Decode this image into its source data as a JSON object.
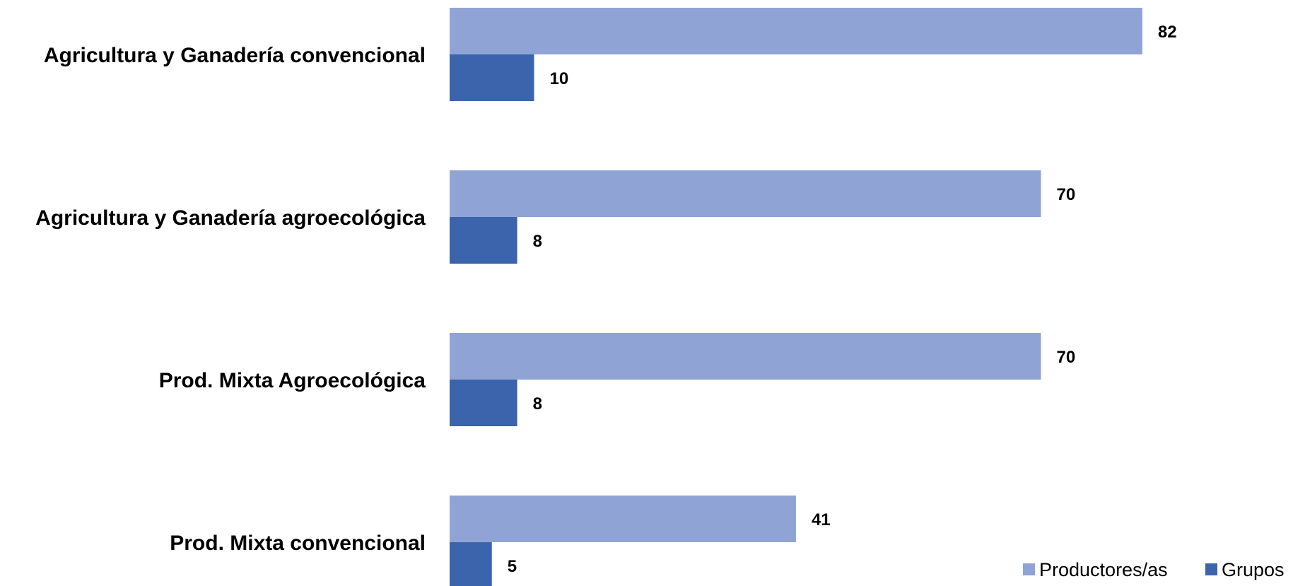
{
  "chart_data": {
    "type": "bar",
    "orientation": "horizontal",
    "categories": [
      "Agricultura y Ganadería convencional",
      "Agricultura y Ganadería agroecológica",
      "Prod. Mixta Agroecológica",
      "Prod. Mixta convencional"
    ],
    "series": [
      {
        "name": "Productores/as",
        "values": [
          82,
          70,
          70,
          41
        ],
        "color": "#8FA4D5"
      },
      {
        "name": "Grupos",
        "values": [
          10,
          8,
          8,
          5
        ],
        "color": "#3C64AD"
      }
    ],
    "data_labels": true,
    "xlim": [
      0,
      100
    ],
    "grid": false,
    "legend_position": "bottom-right",
    "title": "",
    "xlabel": "",
    "ylabel": ""
  }
}
